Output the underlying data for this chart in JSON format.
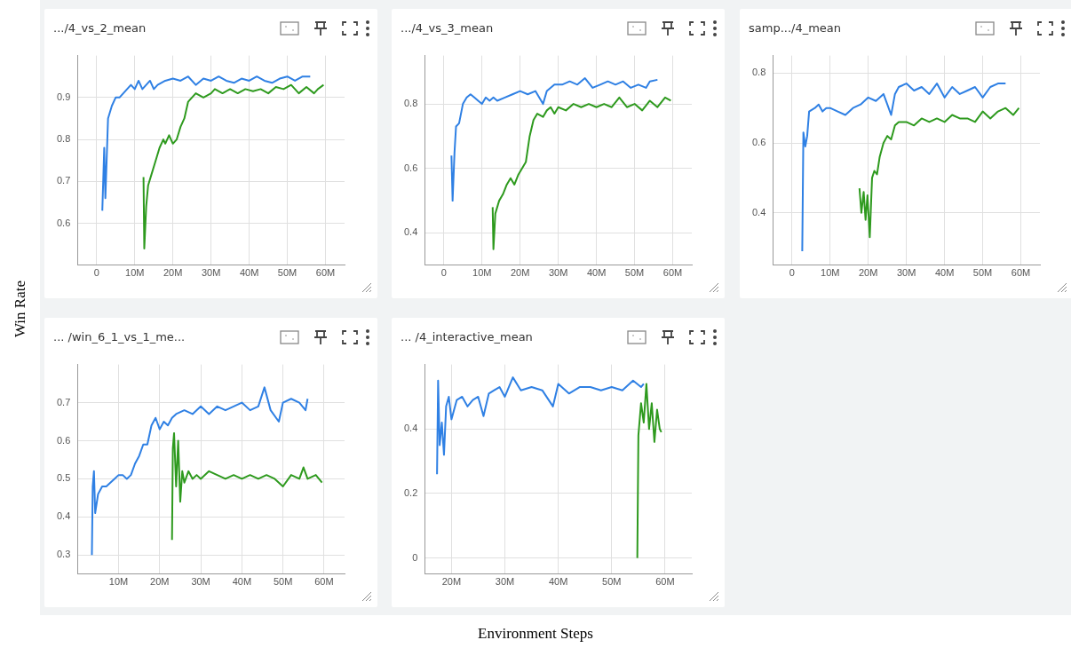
{
  "chart_data": [
    {
      "type": "line",
      "title": ".../4_vs_2_mean",
      "ylabel": "Win Rate",
      "grid": true,
      "marker": "none",
      "line_style": "solid",
      "xlim": [
        -5,
        65
      ],
      "xticks": [
        {
          "value": 0,
          "label": "0"
        },
        {
          "value": 10,
          "label": "10M"
        },
        {
          "value": 20,
          "label": "20M"
        },
        {
          "value": 30,
          "label": "30M"
        },
        {
          "value": 40,
          "label": "40M"
        },
        {
          "value": 50,
          "label": "50M"
        },
        {
          "value": 60,
          "label": "60M"
        }
      ],
      "ylim": [
        0.5,
        1.0
      ],
      "yticks": [
        0.6,
        0.7,
        0.8,
        0.9
      ],
      "series": [
        {
          "color": "#2f80e4",
          "x": [
            1.5,
            2,
            2.3,
            3,
            4,
            5,
            6,
            7,
            8,
            9,
            10,
            11,
            12,
            13,
            14,
            15,
            16,
            18,
            20,
            22,
            24,
            26,
            28,
            30,
            32,
            34,
            36,
            38,
            40,
            42,
            44,
            46,
            48,
            50,
            52,
            54,
            56
          ],
          "values": [
            0.63,
            0.78,
            0.66,
            0.85,
            0.88,
            0.9,
            0.9,
            0.91,
            0.92,
            0.93,
            0.92,
            0.94,
            0.92,
            0.93,
            0.94,
            0.92,
            0.93,
            0.94,
            0.945,
            0.94,
            0.95,
            0.93,
            0.945,
            0.94,
            0.95,
            0.94,
            0.935,
            0.945,
            0.94,
            0.95,
            0.94,
            0.935,
            0.945,
            0.95,
            0.94,
            0.95,
            0.95
          ]
        },
        {
          "color": "#2e9a1e",
          "x": [
            12.3,
            12.5,
            13,
            13.5,
            14.5,
            15.5,
            16.5,
            17.5,
            18,
            19,
            20,
            21,
            22,
            23,
            24,
            25,
            26,
            28,
            30,
            31,
            33,
            35,
            37,
            39,
            41,
            43,
            45,
            47,
            49,
            51,
            53,
            55,
            57,
            58,
            59.5
          ],
          "values": [
            0.71,
            0.54,
            0.64,
            0.69,
            0.72,
            0.75,
            0.78,
            0.8,
            0.79,
            0.81,
            0.79,
            0.8,
            0.83,
            0.85,
            0.89,
            0.9,
            0.91,
            0.9,
            0.91,
            0.92,
            0.91,
            0.92,
            0.91,
            0.92,
            0.915,
            0.92,
            0.91,
            0.925,
            0.92,
            0.93,
            0.91,
            0.925,
            0.91,
            0.92,
            0.93
          ]
        }
      ]
    },
    {
      "type": "line",
      "title": ".../4_vs_3_mean",
      "grid": true,
      "marker": "none",
      "line_style": "solid",
      "xlim": [
        -5,
        65
      ],
      "xticks": [
        {
          "value": 0,
          "label": "0"
        },
        {
          "value": 10,
          "label": "10M"
        },
        {
          "value": 20,
          "label": "20M"
        },
        {
          "value": 30,
          "label": "30M"
        },
        {
          "value": 40,
          "label": "40M"
        },
        {
          "value": 50,
          "label": "50M"
        },
        {
          "value": 60,
          "label": "60M"
        }
      ],
      "ylim": [
        0.3,
        0.95
      ],
      "yticks": [
        0.4,
        0.6,
        0.8
      ],
      "series": [
        {
          "color": "#2f80e4",
          "x": [
            2,
            2.3,
            2.8,
            3.2,
            4,
            5,
            6,
            7,
            8,
            9,
            10,
            11,
            12,
            13,
            14,
            16,
            18,
            20,
            22,
            24,
            26,
            27,
            29,
            31,
            33,
            35,
            37,
            39,
            41,
            43,
            45,
            47,
            49,
            51,
            53,
            54,
            56
          ],
          "values": [
            0.64,
            0.5,
            0.65,
            0.73,
            0.74,
            0.8,
            0.82,
            0.83,
            0.82,
            0.81,
            0.8,
            0.82,
            0.81,
            0.82,
            0.81,
            0.82,
            0.83,
            0.84,
            0.83,
            0.84,
            0.8,
            0.84,
            0.86,
            0.86,
            0.87,
            0.86,
            0.88,
            0.85,
            0.86,
            0.87,
            0.86,
            0.87,
            0.85,
            0.86,
            0.85,
            0.87,
            0.875
          ]
        },
        {
          "color": "#2e9a1e",
          "x": [
            12.8,
            13,
            13.5,
            14.5,
            15.5,
            16.5,
            17.5,
            18.5,
            19.5,
            20.5,
            21.5,
            22.5,
            23.5,
            24.5,
            26,
            27,
            28,
            29,
            30,
            32,
            34,
            36,
            38,
            40,
            42,
            44,
            46,
            48,
            50,
            52,
            54,
            56,
            58,
            59.5
          ],
          "values": [
            0.48,
            0.35,
            0.46,
            0.5,
            0.52,
            0.55,
            0.57,
            0.55,
            0.58,
            0.6,
            0.62,
            0.7,
            0.75,
            0.77,
            0.76,
            0.78,
            0.79,
            0.77,
            0.79,
            0.78,
            0.8,
            0.79,
            0.8,
            0.79,
            0.8,
            0.79,
            0.82,
            0.79,
            0.8,
            0.78,
            0.81,
            0.79,
            0.82,
            0.81
          ]
        }
      ]
    },
    {
      "type": "line",
      "title": "samp.../4_mean",
      "grid": true,
      "marker": "none",
      "line_style": "solid",
      "xlim": [
        -5,
        65
      ],
      "xticks": [
        {
          "value": 0,
          "label": "0"
        },
        {
          "value": 10,
          "label": "10M"
        },
        {
          "value": 20,
          "label": "20M"
        },
        {
          "value": 30,
          "label": "30M"
        },
        {
          "value": 40,
          "label": "40M"
        },
        {
          "value": 50,
          "label": "50M"
        },
        {
          "value": 60,
          "label": "60M"
        }
      ],
      "ylim": [
        0.25,
        0.85
      ],
      "yticks": [
        0.4,
        0.6,
        0.8
      ],
      "series": [
        {
          "color": "#2f80e4",
          "x": [
            2.7,
            3,
            3.5,
            4,
            4.5,
            6,
            7,
            8,
            9,
            10,
            12,
            14,
            16,
            18,
            20,
            22,
            24,
            25,
            26,
            27,
            28,
            30,
            32,
            34,
            36,
            38,
            40,
            42,
            44,
            46,
            48,
            50,
            52,
            54,
            56
          ],
          "values": [
            0.29,
            0.63,
            0.59,
            0.62,
            0.69,
            0.7,
            0.71,
            0.69,
            0.7,
            0.7,
            0.69,
            0.68,
            0.7,
            0.71,
            0.73,
            0.72,
            0.74,
            0.71,
            0.68,
            0.74,
            0.76,
            0.77,
            0.75,
            0.76,
            0.74,
            0.77,
            0.73,
            0.76,
            0.74,
            0.75,
            0.76,
            0.73,
            0.76,
            0.77,
            0.77
          ]
        },
        {
          "color": "#2e9a1e",
          "x": [
            17.7,
            18.2,
            18.8,
            19.3,
            19.8,
            20.4,
            21,
            21.6,
            22.3,
            23,
            24,
            25,
            26,
            27,
            28,
            30,
            32,
            34,
            36,
            38,
            40,
            42,
            44,
            46,
            48,
            50,
            52,
            54,
            56,
            58,
            59.5
          ],
          "values": [
            0.47,
            0.4,
            0.46,
            0.38,
            0.45,
            0.33,
            0.5,
            0.52,
            0.51,
            0.56,
            0.6,
            0.62,
            0.61,
            0.65,
            0.66,
            0.66,
            0.65,
            0.67,
            0.66,
            0.67,
            0.66,
            0.68,
            0.67,
            0.67,
            0.66,
            0.69,
            0.67,
            0.69,
            0.7,
            0.68,
            0.7
          ]
        }
      ]
    },
    {
      "type": "line",
      "title": "... /win_6_1_vs_1_me...",
      "grid": true,
      "marker": "none",
      "line_style": "solid",
      "xlim": [
        0,
        65
      ],
      "xticks": [
        {
          "value": 10,
          "label": "10M"
        },
        {
          "value": 20,
          "label": "20M"
        },
        {
          "value": 30,
          "label": "30M"
        },
        {
          "value": 40,
          "label": "40M"
        },
        {
          "value": 50,
          "label": "50M"
        },
        {
          "value": 60,
          "label": "60M"
        }
      ],
      "ylim": [
        0.25,
        0.8
      ],
      "yticks": [
        0.3,
        0.4,
        0.5,
        0.6,
        0.7
      ],
      "series": [
        {
          "color": "#2f80e4",
          "x": [
            3.5,
            3.7,
            4,
            4.3,
            5,
            6,
            7,
            8,
            9,
            10,
            11,
            12,
            13,
            14,
            15,
            16,
            17,
            18,
            19,
            20,
            21,
            22,
            23,
            24,
            26,
            28,
            30,
            32,
            34,
            36,
            38,
            40,
            42,
            44,
            45.5,
            47,
            49,
            50,
            52,
            54,
            55.5,
            56
          ],
          "values": [
            0.3,
            0.48,
            0.52,
            0.41,
            0.46,
            0.48,
            0.48,
            0.49,
            0.5,
            0.51,
            0.51,
            0.5,
            0.51,
            0.54,
            0.56,
            0.59,
            0.59,
            0.64,
            0.66,
            0.63,
            0.65,
            0.64,
            0.66,
            0.67,
            0.68,
            0.67,
            0.69,
            0.67,
            0.69,
            0.68,
            0.69,
            0.7,
            0.68,
            0.69,
            0.74,
            0.68,
            0.65,
            0.7,
            0.71,
            0.7,
            0.68,
            0.71
          ]
        },
        {
          "color": "#2e9a1e",
          "x": [
            23,
            23.2,
            23.5,
            24,
            24.5,
            25,
            25.5,
            26,
            27,
            28,
            29,
            30,
            32,
            34,
            36,
            38,
            40,
            42,
            44,
            46,
            48,
            50,
            52,
            54,
            55,
            56,
            58,
            59.5
          ],
          "values": [
            0.34,
            0.58,
            0.62,
            0.48,
            0.6,
            0.44,
            0.52,
            0.49,
            0.52,
            0.5,
            0.51,
            0.5,
            0.52,
            0.51,
            0.5,
            0.51,
            0.5,
            0.51,
            0.5,
            0.51,
            0.5,
            0.48,
            0.51,
            0.5,
            0.53,
            0.5,
            0.51,
            0.49
          ]
        }
      ]
    },
    {
      "type": "line",
      "title": "... /4_interactive_mean",
      "xlabel": "Environment Steps",
      "grid": true,
      "marker": "none",
      "line_style": "solid",
      "xlim": [
        15,
        65
      ],
      "xticks": [
        {
          "value": 20,
          "label": "20M"
        },
        {
          "value": 30,
          "label": "30M"
        },
        {
          "value": 40,
          "label": "40M"
        },
        {
          "value": 50,
          "label": "50M"
        },
        {
          "value": 60,
          "label": "60M"
        }
      ],
      "ylim": [
        -0.05,
        0.6
      ],
      "yticks": [
        0,
        0.2,
        0.4
      ],
      "series": [
        {
          "color": "#2f80e4",
          "x": [
            17.3,
            17.5,
            17.8,
            18.2,
            18.6,
            19,
            19.5,
            20,
            21,
            22,
            23,
            24,
            25,
            26,
            27,
            28,
            29,
            30,
            31.5,
            33,
            35,
            37,
            39,
            40,
            42,
            44,
            46,
            48,
            50,
            52,
            54,
            55.5,
            56
          ],
          "values": [
            0.26,
            0.55,
            0.35,
            0.42,
            0.32,
            0.47,
            0.5,
            0.43,
            0.49,
            0.5,
            0.47,
            0.49,
            0.5,
            0.44,
            0.51,
            0.52,
            0.53,
            0.5,
            0.56,
            0.52,
            0.53,
            0.52,
            0.47,
            0.54,
            0.51,
            0.53,
            0.53,
            0.52,
            0.53,
            0.52,
            0.55,
            0.53,
            0.54
          ]
        },
        {
          "color": "#2e9a1e",
          "x": [
            54.8,
            55,
            55.5,
            56,
            56.5,
            57,
            57.5,
            58,
            58.5,
            59,
            59.3
          ],
          "values": [
            0,
            0.38,
            0.48,
            0.42,
            0.54,
            0.4,
            0.48,
            0.36,
            0.46,
            0.4,
            0.39
          ]
        }
      ]
    }
  ]
}
